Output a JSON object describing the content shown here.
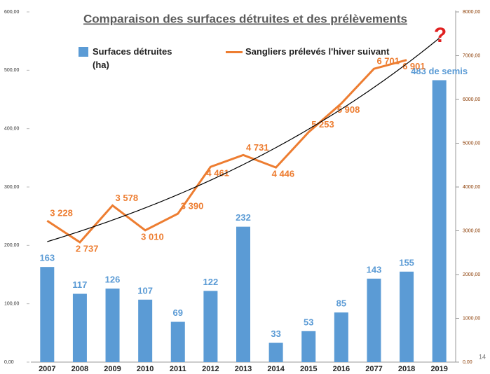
{
  "chart_data": {
    "type": "bar_line",
    "title": "Comparaison des surfaces détruites et des prélèvements",
    "categories": [
      "2007",
      "2008",
      "2009",
      "2010",
      "2011",
      "2012",
      "2013",
      "2014",
      "2015",
      "2016",
      "2077",
      "2018",
      "2019"
    ],
    "series": [
      {
        "name": "Surfaces détruites (ha)",
        "type": "bar",
        "color": "#5b9bd5",
        "values": [
          163,
          117,
          126,
          107,
          69,
          122,
          232,
          33,
          53,
          85,
          143,
          155,
          483
        ],
        "value_labels": [
          "163",
          "117",
          "126",
          "107",
          "69",
          "122",
          "232",
          "33",
          "53",
          "85",
          "143",
          "155",
          "483 de semis"
        ]
      },
      {
        "name": "Sangliers prélevés l'hiver suivant",
        "type": "line",
        "axis": "y2",
        "color": "#ed7d31",
        "values": [
          3228,
          2737,
          3578,
          3010,
          3390,
          4461,
          4731,
          4446,
          5253,
          5908,
          6701,
          6901,
          null
        ],
        "value_labels": [
          "3 228",
          "2 737",
          "3 578",
          "3 010",
          "3 390",
          "4 461",
          "4 731",
          "4 446",
          "5 253",
          "5 908",
          "6 701",
          "6 901",
          null
        ]
      }
    ],
    "ylim": [
      0,
      600
    ],
    "yticks": [
      {
        "value": 0,
        "label": "0,00"
      },
      {
        "value": 100,
        "label": "100,00"
      },
      {
        "value": 200,
        "label": "200,00"
      },
      {
        "value": 300,
        "label": "300,00"
      },
      {
        "value": 400,
        "label": "400,00"
      },
      {
        "value": 500,
        "label": "500,00"
      },
      {
        "value": 600,
        "label": "600,00"
      }
    ],
    "y2lim": [
      0,
      8000
    ],
    "y2ticks": [
      {
        "value": 0,
        "label": "0,00"
      },
      {
        "value": 1000,
        "label": "1000,00"
      },
      {
        "value": 2000,
        "label": "2000,00"
      },
      {
        "value": 3000,
        "label": "3000,00"
      },
      {
        "value": 4000,
        "label": "4000,00"
      },
      {
        "value": 5000,
        "label": "5000,00"
      },
      {
        "value": 6000,
        "label": "6000,00"
      },
      {
        "value": 7000,
        "label": "7000,00"
      },
      {
        "value": 8000,
        "label": "8000,00"
      }
    ],
    "trendline": "exponential",
    "trend_color": "#000000",
    "annotation": "?",
    "page_number": "14"
  }
}
